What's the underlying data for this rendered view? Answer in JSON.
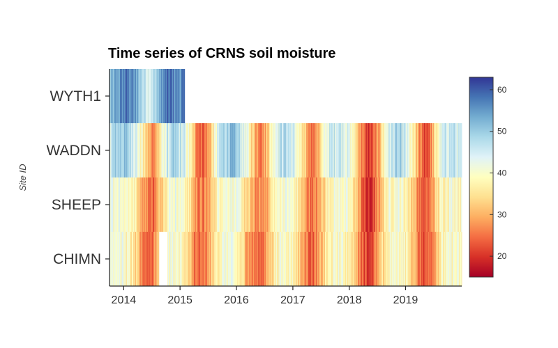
{
  "chart_data": {
    "type": "heatmap",
    "title": "Time series of CRNS soil moisture",
    "xlabel": "",
    "ylabel": "Site ID",
    "x_range": [
      "2013-10-01",
      "2019-12-31"
    ],
    "x_ticks": [
      "2014",
      "2015",
      "2016",
      "2017",
      "2018",
      "2019"
    ],
    "sites": [
      "WYTH1",
      "WADDN",
      "SHEEP",
      "CHIMN"
    ],
    "colorbar": {
      "min": 15,
      "max": 63,
      "ticks": [
        20,
        30,
        40,
        50,
        60
      ]
    },
    "series": [
      {
        "site": "WYTH1",
        "coverage": [
          "2013-10-01",
          "2015-01-31"
        ],
        "monthly_mean": [
          50,
          52,
          55,
          57,
          58,
          55,
          52,
          48,
          46,
          45,
          50,
          54,
          57,
          58,
          56
        ]
      },
      {
        "site": "WADDN",
        "coverage": [
          "2013-10-01",
          "2019-12-31"
        ],
        "monthly_mean": [
          46,
          48,
          50,
          50,
          49,
          47,
          42,
          37,
          31,
          27,
          30,
          38,
          44,
          47,
          48,
          46,
          43,
          38,
          30,
          25,
          24,
          28,
          36,
          44,
          48,
          50,
          51,
          49,
          46,
          42,
          36,
          30,
          27,
          29,
          36,
          43,
          46,
          48,
          47,
          44,
          40,
          34,
          28,
          26,
          28,
          35,
          42,
          45,
          46,
          47,
          45,
          42,
          37,
          31,
          24,
          20,
          22,
          27,
          36,
          43,
          46,
          48,
          47,
          44,
          39,
          33,
          26,
          22,
          24,
          32,
          40,
          44,
          46,
          47,
          45,
          42,
          38,
          30,
          24,
          20,
          25
        ]
      },
      {
        "site": "SHEEP",
        "coverage": [
          "2013-10-01",
          "2019-12-31"
        ],
        "monthly_mean": [
          40,
          42,
          42,
          41,
          40,
          38,
          34,
          30,
          26,
          24,
          27,
          34,
          39,
          41,
          42,
          41,
          39,
          35,
          29,
          26,
          25,
          28,
          34,
          39,
          41,
          42,
          42,
          40,
          38,
          34,
          30,
          27,
          26,
          28,
          33,
          38,
          40,
          41,
          41,
          39,
          36,
          31,
          27,
          25,
          26,
          31,
          36,
          39,
          40,
          41,
          40,
          38,
          35,
          29,
          22,
          18,
          20,
          26,
          33,
          38,
          40,
          41,
          40,
          38,
          35,
          30,
          25,
          22,
          24,
          30,
          36,
          39,
          40,
          41,
          40,
          38,
          34,
          29,
          25,
          22,
          26
        ]
      },
      {
        "site": "CHIMN",
        "coverage": [
          "2013-10-01",
          "2019-12-31"
        ],
        "gaps": [
          [
            "2014-08-15",
            "2014-10-10"
          ]
        ],
        "monthly_mean": [
          41,
          43,
          42,
          40,
          38,
          35,
          30,
          26,
          24,
          25,
          30,
          37,
          40,
          41,
          41,
          39,
          36,
          31,
          26,
          23,
          24,
          28,
          34,
          38,
          40,
          41,
          40,
          38,
          35,
          31,
          27,
          25,
          24,
          27,
          32,
          37,
          39,
          40,
          40,
          38,
          34,
          29,
          26,
          24,
          25,
          30,
          35,
          38,
          39,
          40,
          39,
          37,
          33,
          28,
          24,
          21,
          23,
          27,
          33,
          37,
          39,
          40,
          40,
          38,
          34,
          29,
          25,
          23,
          24,
          29,
          35,
          38,
          39,
          40,
          39,
          37,
          33,
          28,
          25,
          23,
          27
        ]
      }
    ],
    "grid": false,
    "legend": "right"
  }
}
